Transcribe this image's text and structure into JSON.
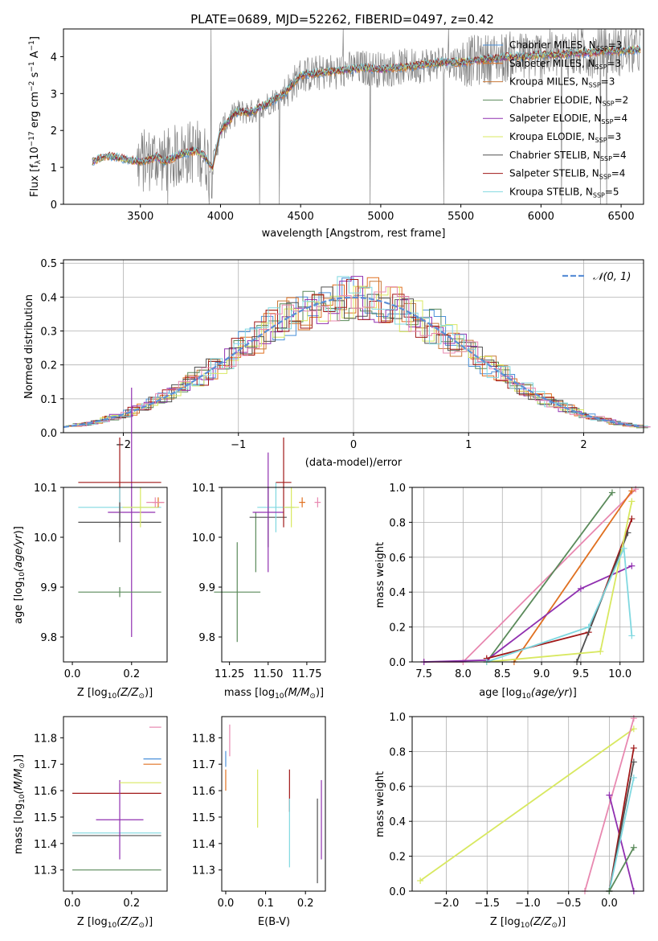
{
  "figure": {
    "title": "PLATE=0689, MJD=52262, FIBERID=0497, z=0.42"
  },
  "colors": {
    "chab_miles": "#4a90d9",
    "salp_miles": "#e07020",
    "krou_miles": "#c87838",
    "chab_elodie": "#5a8a5a",
    "salp_elodie": "#9030b0",
    "krou_elodie": "#d8e860",
    "chab_stelib": "#505050",
    "salp_stelib": "#a01818",
    "krou_stelib": "#80d8e0",
    "pink": "#e888b0",
    "gauss": "#5b8fd6",
    "data": "#808080"
  },
  "chart_data": [
    {
      "id": "spectrum",
      "type": "line",
      "xlabel": "wavelength [Angstrom, rest frame]",
      "ylabel": "Flux [f",
      "xlim": [
        3020,
        6640
      ],
      "ylim": [
        0,
        4.75
      ],
      "xticks": [
        3500,
        4000,
        4500,
        5000,
        5500,
        6000,
        6500
      ],
      "yticks": [
        0,
        1,
        2,
        3,
        4
      ],
      "legend_position": "top-right",
      "continuum": {
        "x": [
          3200,
          3250,
          3300,
          3350,
          3400,
          3450,
          3500,
          3550,
          3600,
          3650,
          3700,
          3750,
          3800,
          3850,
          3900,
          3950,
          4000,
          4050,
          4100,
          4150,
          4200,
          4300,
          4400,
          4500,
          4600,
          4700,
          4800,
          4900,
          5000,
          5100,
          5200,
          5300,
          5400,
          5500,
          5600,
          5700,
          5800,
          5900,
          6000,
          6100,
          6200,
          6300,
          6400,
          6500,
          6600
        ],
        "y": [
          1.15,
          1.25,
          1.3,
          1.28,
          1.22,
          1.18,
          1.15,
          1.2,
          1.3,
          1.15,
          1.25,
          1.35,
          1.4,
          1.45,
          1.3,
          1.0,
          2.0,
          2.25,
          2.5,
          2.5,
          2.5,
          2.75,
          3.0,
          3.5,
          3.55,
          3.6,
          3.65,
          3.7,
          3.65,
          3.7,
          3.75,
          3.8,
          3.85,
          3.85,
          3.9,
          3.95,
          4.0,
          4.0,
          4.05,
          4.05,
          4.1,
          4.1,
          4.15,
          4.15,
          4.2
        ]
      },
      "legend": [
        {
          "label": "Chabrier MILES, N",
          "n": "3",
          "color_key": "chab_miles"
        },
        {
          "label": "Salpeter MILES, N",
          "n": "3",
          "color_key": "salp_miles"
        },
        {
          "label": "Kroupa MILES, N",
          "n": "3",
          "color_key": "krou_miles"
        },
        {
          "label": "Chabrier ELODIE, N",
          "n": "2",
          "color_key": "chab_elodie"
        },
        {
          "label": "Salpeter ELODIE, N",
          "n": "4",
          "color_key": "salp_elodie"
        },
        {
          "label": "Kroupa ELODIE, N",
          "n": "3",
          "color_key": "krou_elodie"
        },
        {
          "label": "Chabrier STELIB, N",
          "n": "4",
          "color_key": "chab_stelib"
        },
        {
          "label": "Salpeter STELIB, N",
          "n": "4",
          "color_key": "salp_stelib"
        },
        {
          "label": "Kroupa STELIB, N",
          "n": "5",
          "color_key": "krou_stelib"
        }
      ]
    },
    {
      "id": "residuals",
      "type": "line",
      "xlabel": "(data-model)/error",
      "ylabel": "Normed distribution",
      "xlim": [
        -2.52,
        2.52
      ],
      "ylim": [
        0,
        0.51
      ],
      "xticks": [
        -2,
        -1,
        0,
        1,
        2
      ],
      "yticks": [
        0.0,
        0.1,
        0.2,
        0.3,
        0.4,
        0.5
      ],
      "grid": true,
      "legend_position": "top-right",
      "gaussian_label": "𝒩(0, 1)"
    },
    {
      "id": "age_vs_Z",
      "type": "scatter",
      "xlabel": "Z [log",
      "ylabel": "age  [log",
      "xlim": [
        -0.03,
        0.32
      ],
      "ylim": [
        9.75,
        10.1
      ],
      "xticks": [
        0.0,
        0.2
      ],
      "yticks": [
        9.8,
        9.9,
        10.0,
        10.1
      ],
      "points": [
        {
          "x": 0.2,
          "y": 10.05,
          "color_key": "salp_elodie",
          "xerr": 0.08,
          "yerr": 0.25
        },
        {
          "x": 0.16,
          "y": 10.11,
          "color_key": "salp_stelib",
          "xerr": 0.14,
          "yerr": 0.09
        },
        {
          "x": 0.16,
          "y": 10.06,
          "color_key": "krou_stelib",
          "xerr": 0.14,
          "yerr": 0.04
        },
        {
          "x": 0.16,
          "y": 10.03,
          "color_key": "chab_stelib",
          "xerr": 0.14,
          "yerr": 0.04
        },
        {
          "x": 0.16,
          "y": 9.89,
          "color_key": "chab_elodie",
          "xerr": 0.14,
          "yerr": 0.01
        },
        {
          "x": 0.23,
          "y": 10.06,
          "color_key": "krou_elodie",
          "xerr": 0.06,
          "yerr": 0.04
        },
        {
          "x": 0.29,
          "y": 10.07,
          "color_key": "salp_miles",
          "xerr": 0.02,
          "yerr": 0.01
        },
        {
          "x": 0.28,
          "y": 10.07,
          "color_key": "pink",
          "xerr": 0.03,
          "yerr": 0.01
        }
      ]
    },
    {
      "id": "age_vs_mass",
      "type": "scatter",
      "xlabel": "mass [log",
      "ylabel": "",
      "xlim": [
        11.2,
        11.87
      ],
      "ylim": [
        9.75,
        10.1
      ],
      "xticks": [
        11.25,
        11.5,
        11.75
      ],
      "yticks": [
        9.8,
        9.9,
        10.0,
        10.1
      ],
      "points": [
        {
          "x": 11.3,
          "y": 9.89,
          "color_key": "chab_elodie",
          "xerr": 0.15,
          "yerr": 0.1
        },
        {
          "x": 11.42,
          "y": 9.99,
          "color_key": "chab_elodie",
          "xerr": 0.0,
          "yerr": 0.06
        },
        {
          "x": 11.5,
          "y": 10.04,
          "color_key": "chab_stelib",
          "xerr": 0.12,
          "yerr": 0.06
        },
        {
          "x": 11.55,
          "y": 10.06,
          "color_key": "krou_stelib",
          "xerr": 0.12,
          "yerr": 0.05
        },
        {
          "x": 11.5,
          "y": 10.05,
          "color_key": "salp_elodie",
          "xerr": 0.1,
          "yerr": 0.12
        },
        {
          "x": 11.6,
          "y": 10.11,
          "color_key": "salp_stelib",
          "xerr": 0.05,
          "yerr": 0.09
        },
        {
          "x": 11.65,
          "y": 10.06,
          "color_key": "krou_elodie",
          "xerr": 0.05,
          "yerr": 0.04
        },
        {
          "x": 11.72,
          "y": 10.07,
          "color_key": "salp_miles",
          "xerr": 0.02,
          "yerr": 0.01
        },
        {
          "x": 11.82,
          "y": 10.07,
          "color_key": "pink",
          "xerr": 0.02,
          "yerr": 0.01
        }
      ]
    },
    {
      "id": "massweight_vs_age",
      "type": "line",
      "xlabel": "age  [log",
      "ylabel": "mass weight",
      "xlim": [
        7.35,
        10.3
      ],
      "ylim": [
        0.0,
        1.0
      ],
      "xticks": [
        7.5,
        8.0,
        8.5,
        9.0,
        9.5,
        10.0
      ],
      "yticks": [
        0.0,
        0.2,
        0.4,
        0.6,
        0.8,
        1.0
      ],
      "grid": true,
      "series": [
        {
          "color_key": "pink",
          "x": [
            7.5,
            8.0,
            10.2
          ],
          "y": [
            0.0,
            0.0,
            0.99
          ]
        },
        {
          "color_key": "chab_elodie",
          "x": [
            8.3,
            9.9
          ],
          "y": [
            0.0,
            0.97
          ]
        },
        {
          "color_key": "salp_miles",
          "x": [
            8.65,
            10.15
          ],
          "y": [
            0.0,
            0.98
          ]
        },
        {
          "color_key": "salp_elodie",
          "x": [
            7.5,
            8.3,
            9.5,
            10.15
          ],
          "y": [
            0.0,
            0.01,
            0.42,
            0.55
          ]
        },
        {
          "color_key": "salp_stelib",
          "x": [
            8.3,
            9.6,
            10.15
          ],
          "y": [
            0.02,
            0.17,
            0.82
          ]
        },
        {
          "color_key": "chab_stelib",
          "x": [
            9.45,
            10.1
          ],
          "y": [
            0.0,
            0.74
          ]
        },
        {
          "color_key": "krou_elodie",
          "x": [
            8.3,
            9.75,
            10.15
          ],
          "y": [
            0.0,
            0.06,
            0.92
          ]
        },
        {
          "color_key": "krou_stelib",
          "x": [
            8.3,
            9.6,
            10.05,
            10.15
          ],
          "y": [
            0.0,
            0.2,
            0.65,
            0.15
          ]
        }
      ]
    },
    {
      "id": "mass_vs_Z",
      "type": "scatter",
      "xlabel": "Z [log",
      "ylabel": "mass [log",
      "xlim": [
        -0.03,
        0.32
      ],
      "ylim": [
        11.22,
        11.88
      ],
      "xticks": [
        0.0,
        0.2
      ],
      "yticks": [
        11.3,
        11.4,
        11.5,
        11.6,
        11.7,
        11.8
      ],
      "points": [
        {
          "x": 0.15,
          "y": 11.3,
          "color_key": "chab_elodie",
          "xerr": 0.15,
          "yerr": 0.0
        },
        {
          "x": 0.15,
          "y": 11.43,
          "color_key": "chab_stelib",
          "xerr": 0.15,
          "yerr": 0.0
        },
        {
          "x": 0.15,
          "y": 11.44,
          "color_key": "krou_stelib",
          "xerr": 0.15,
          "yerr": 0.0
        },
        {
          "x": 0.15,
          "y": 11.59,
          "color_key": "salp_stelib",
          "xerr": 0.15,
          "yerr": 0.0
        },
        {
          "x": 0.16,
          "y": 11.49,
          "color_key": "salp_elodie",
          "xerr": 0.08,
          "yerr": 0.15
        },
        {
          "x": 0.23,
          "y": 11.63,
          "color_key": "krou_elodie",
          "xerr": 0.07,
          "yerr": 0.0
        },
        {
          "x": 0.27,
          "y": 11.72,
          "color_key": "chab_miles",
          "xerr": 0.03,
          "yerr": 0.0
        },
        {
          "x": 0.27,
          "y": 11.7,
          "color_key": "salp_miles",
          "xerr": 0.03,
          "yerr": 0.0
        },
        {
          "x": 0.28,
          "y": 11.84,
          "color_key": "pink",
          "xerr": 0.02,
          "yerr": 0.0
        }
      ]
    },
    {
      "id": "mass_vs_ebv",
      "type": "scatter",
      "xlabel": "E(B-V)",
      "ylabel": "",
      "xlim": [
        -0.01,
        0.25
      ],
      "ylim": [
        11.22,
        11.88
      ],
      "xticks": [
        0.0,
        0.1,
        0.2
      ],
      "yticks": [
        11.3,
        11.4,
        11.5,
        11.6,
        11.7,
        11.8
      ],
      "points": [
        {
          "x": 0.0,
          "y": 11.64,
          "color_key": "salp_miles",
          "yerr": 0.04
        },
        {
          "x": 0.0,
          "y": 11.72,
          "color_key": "chab_miles",
          "yerr": 0.03
        },
        {
          "x": 0.01,
          "y": 11.79,
          "color_key": "pink",
          "yerr": 0.06
        },
        {
          "x": 0.08,
          "y": 11.57,
          "color_key": "krou_elodie",
          "yerr": 0.11
        },
        {
          "x": 0.16,
          "y": 11.6,
          "color_key": "salp_stelib",
          "yerr": 0.08
        },
        {
          "x": 0.16,
          "y": 11.44,
          "color_key": "krou_stelib",
          "yerr": 0.13
        },
        {
          "x": 0.23,
          "y": 11.41,
          "color_key": "chab_stelib",
          "yerr": 0.16
        },
        {
          "x": 0.24,
          "y": 11.49,
          "color_key": "salp_elodie",
          "yerr": 0.15
        }
      ]
    },
    {
      "id": "massweight_vs_Z",
      "type": "line",
      "xlabel": "Z [log",
      "ylabel": "mass weight",
      "xlim": [
        -2.42,
        0.42
      ],
      "ylim": [
        0.0,
        1.0
      ],
      "xticks": [
        -2.0,
        -1.5,
        -1.0,
        -0.5,
        0.0
      ],
      "yticks": [
        0.0,
        0.2,
        0.4,
        0.6,
        0.8,
        1.0
      ],
      "grid": true,
      "series": [
        {
          "color_key": "krou_elodie",
          "x": [
            -2.32,
            0.3
          ],
          "y": [
            0.06,
            0.93
          ]
        },
        {
          "color_key": "pink",
          "x": [
            -0.3,
            0.3
          ],
          "y": [
            0.0,
            0.99
          ]
        },
        {
          "color_key": "salp_elodie",
          "x": [
            0.0,
            0.3
          ],
          "y": [
            0.55,
            0.0
          ]
        },
        {
          "color_key": "salp_stelib",
          "x": [
            0.0,
            0.3
          ],
          "y": [
            0.0,
            0.82
          ]
        },
        {
          "color_key": "chab_stelib",
          "x": [
            0.0,
            0.3
          ],
          "y": [
            0.0,
            0.74
          ]
        },
        {
          "color_key": "krou_stelib",
          "x": [
            0.0,
            0.3
          ],
          "y": [
            0.0,
            0.65
          ]
        },
        {
          "color_key": "chab_elodie",
          "x": [
            0.0,
            0.3
          ],
          "y": [
            0.0,
            0.25
          ]
        }
      ]
    }
  ]
}
